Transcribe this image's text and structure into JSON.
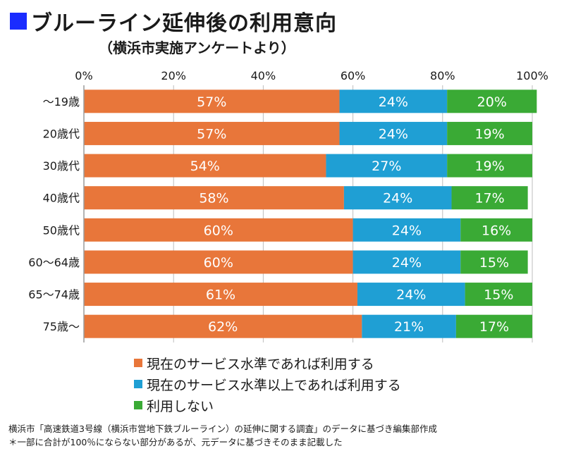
{
  "header": {
    "title": "ブルーライン延伸後の利用意向",
    "subtitle": "（横浜市実施アンケートより）"
  },
  "colors": {
    "title_square": "#1a2cff",
    "grid": "#bdbdbd",
    "label_text": "#ffffff"
  },
  "chart_data": {
    "type": "bar",
    "orientation": "horizontal",
    "stacked": true,
    "xlim": [
      0,
      100
    ],
    "x_ticks": [
      "0%",
      "20%",
      "40%",
      "60%",
      "80%",
      "100%"
    ],
    "grid": true,
    "legend_position": "bottom",
    "categories": [
      "～19歳",
      "20歳代",
      "30歳代",
      "40歳代",
      "50歳代",
      "60～64歳",
      "65～74歳",
      "75歳～"
    ],
    "series": [
      {
        "name": "現在のサービス水準であれば利用する",
        "color": "#e8763a",
        "values": [
          57,
          57,
          54,
          58,
          60,
          60,
          61,
          62
        ],
        "labels": [
          "57%",
          "57%",
          "54%",
          "58%",
          "60%",
          "60%",
          "61%",
          "62%"
        ]
      },
      {
        "name": "現在のサービス水準以上であれば利用する",
        "color": "#1f9fd4",
        "values": [
          24,
          24,
          27,
          24,
          24,
          24,
          24,
          21
        ],
        "labels": [
          "24%",
          "24%",
          "27%",
          "24%",
          "24%",
          "24%",
          "24%",
          "21%"
        ]
      },
      {
        "name": "利用しない",
        "color": "#3aaa35",
        "values": [
          20,
          19,
          19,
          17,
          16,
          15,
          15,
          17
        ],
        "labels": [
          "20%",
          "19%",
          "19%",
          "17%",
          "16%",
          "15%",
          "15%",
          "17%"
        ]
      }
    ]
  },
  "footnotes": [
    "横浜市「高速鉄道3号線（横浜市営地下鉄ブルーライン）の延伸に関する調査」のデータに基づき編集部作成",
    "＊一部に合計が100％にならない部分があるが、元データに基づきそのまま記載した"
  ]
}
